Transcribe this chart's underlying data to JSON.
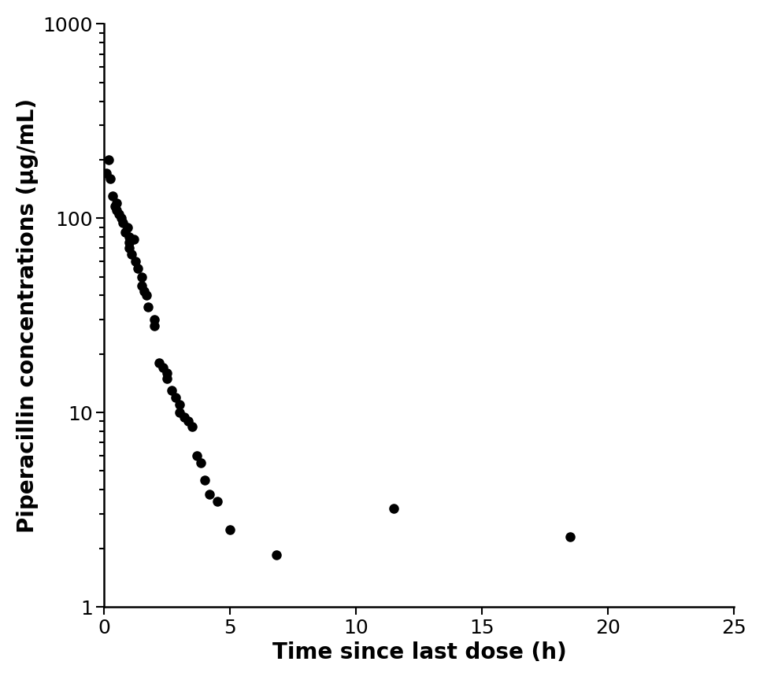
{
  "x": [
    0.08,
    0.17,
    0.25,
    0.33,
    0.42,
    0.5,
    0.5,
    0.58,
    0.67,
    0.75,
    0.83,
    0.92,
    1.0,
    1.0,
    1.0,
    1.08,
    1.17,
    1.25,
    1.33,
    1.5,
    1.5,
    1.58,
    1.67,
    1.75,
    2.0,
    2.0,
    2.17,
    2.33,
    2.5,
    2.5,
    2.67,
    2.83,
    3.0,
    3.0,
    3.17,
    3.33,
    3.5,
    3.67,
    3.83,
    4.0,
    4.17,
    4.5,
    5.0,
    6.83,
    11.5,
    18.5
  ],
  "y": [
    170,
    200,
    160,
    130,
    115,
    120,
    110,
    105,
    100,
    95,
    85,
    90,
    80,
    75,
    70,
    65,
    78,
    60,
    55,
    50,
    45,
    42,
    40,
    35,
    30,
    28,
    18,
    17,
    16,
    15,
    13,
    12,
    11,
    10,
    9.5,
    9.0,
    8.5,
    6.0,
    5.5,
    4.5,
    3.8,
    3.5,
    2.5,
    1.85,
    3.2,
    2.3
  ],
  "marker_color": "#000000",
  "marker_size": 8,
  "xlabel": "Time since last dose (h)",
  "ylabel": "Piperacillin concentrations (μg/mL)",
  "xlim": [
    0,
    25
  ],
  "ylim": [
    1,
    1000
  ],
  "xticks": [
    0,
    5,
    10,
    15,
    20,
    25
  ],
  "yticks": [
    1,
    10,
    100,
    1000
  ],
  "background_color": "#ffffff",
  "xlabel_fontsize": 20,
  "ylabel_fontsize": 20,
  "tick_fontsize": 18
}
